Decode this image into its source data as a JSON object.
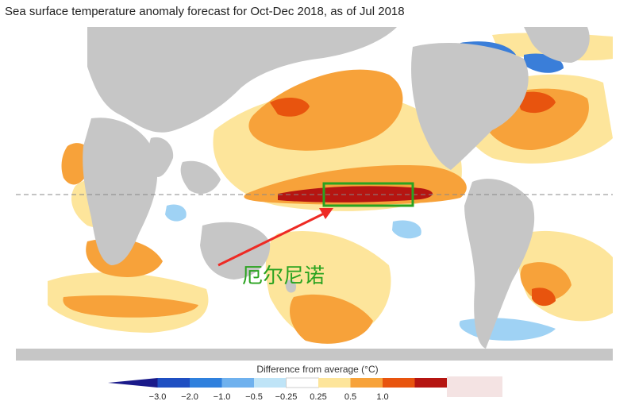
{
  "title": "Sea surface temperature anomaly forecast for Oct-Dec 2018, as of Jul 2018",
  "annotation": {
    "label": "厄尔尼诺",
    "color": "#2aa320"
  },
  "legend": {
    "title": "Difference from average (°C)",
    "ticks": [
      "−3.0",
      "−2.0",
      "−1.0",
      "−0.5",
      "−0.25",
      "0.25",
      "0.5",
      "1.0"
    ],
    "colors": [
      "#1a1a8a",
      "#1f4fc2",
      "#2f80dd",
      "#6fb1ee",
      "#bfe4f7",
      "#ffffff",
      "#fde59b",
      "#f7a23a",
      "#e8540e",
      "#b51511"
    ]
  },
  "colors": {
    "land": "#c6c6c6",
    "ocean": "#ffffff",
    "weak_warm": "#fde59b",
    "mid_warm": "#f7a23a",
    "strong_warm": "#e8540e",
    "very_warm": "#b51511",
    "cool": "#9fd2f4",
    "cool_strong": "#3a7ed9"
  }
}
